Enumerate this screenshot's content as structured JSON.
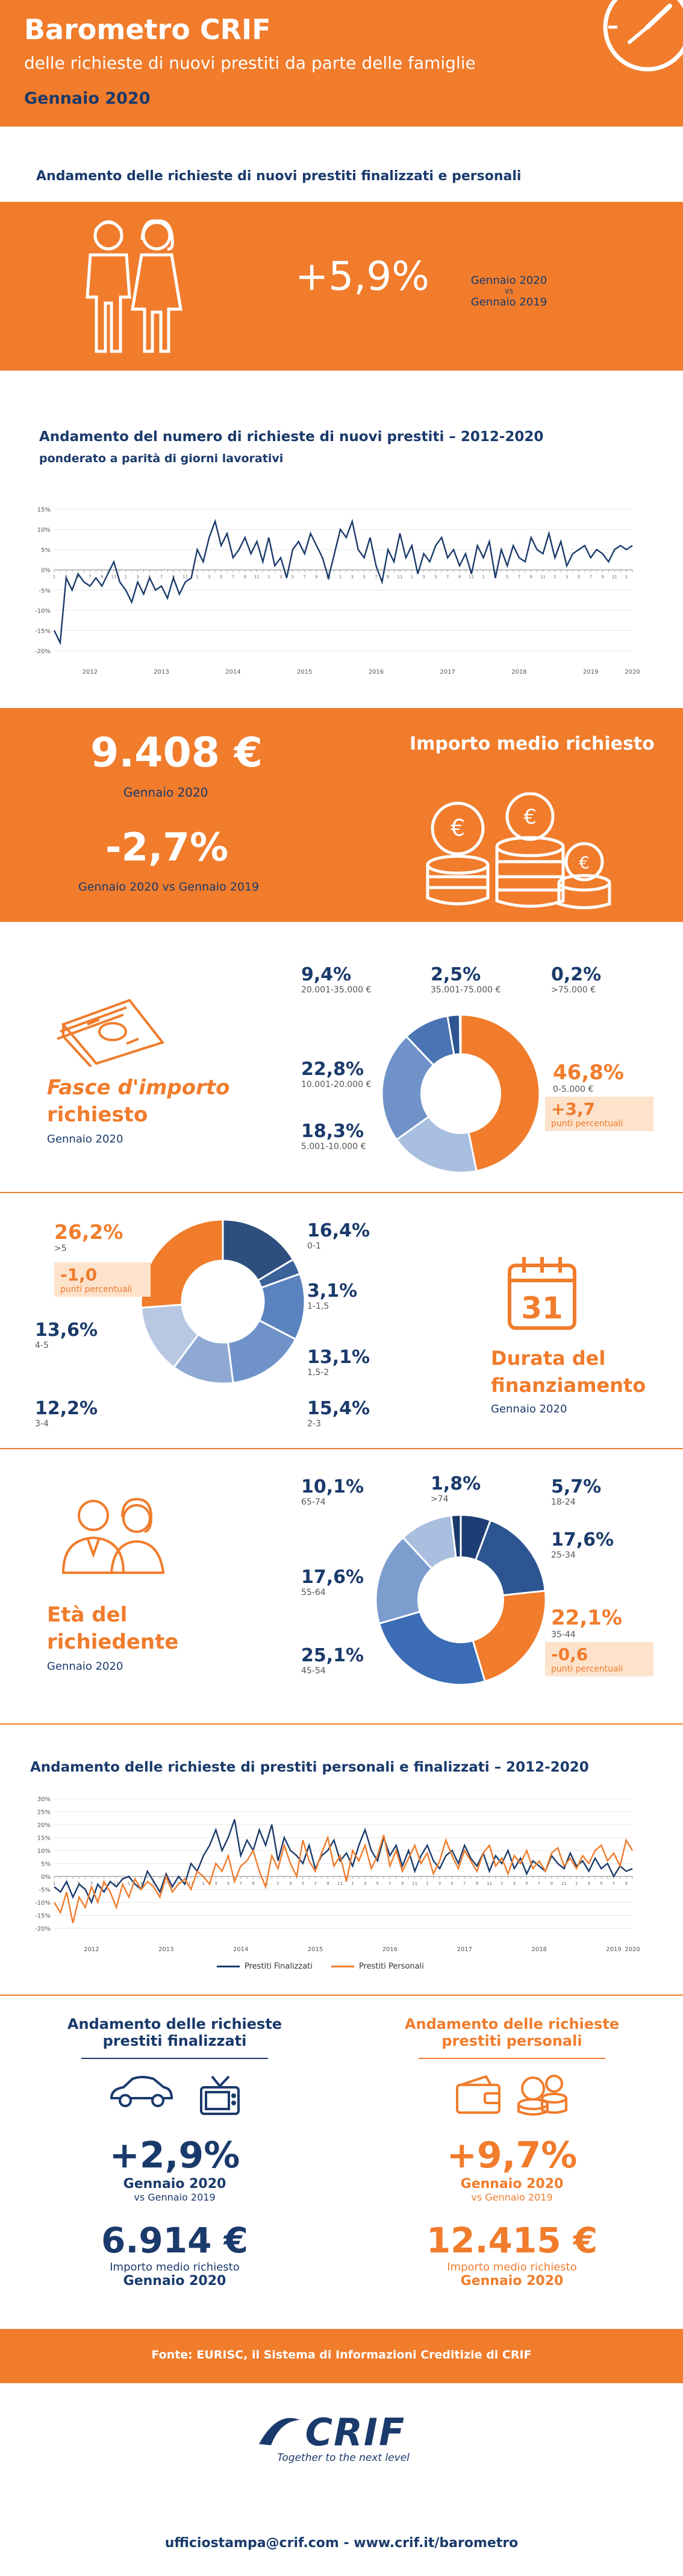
{
  "header": {
    "title": "Barometro CRIF",
    "subtitle": "delle richieste di nuovi prestiti da parte delle famiglie",
    "date": "Gennaio 2020"
  },
  "section1": {
    "title": "Andamento delle richieste di nuovi prestiti finalizzati e personali",
    "value": "+5,9%",
    "compare_line1": "Gennaio 2020",
    "compare_line2": "vs",
    "compare_line3": "Gennaio 2019"
  },
  "chart1": {
    "title": "Andamento del numero di richieste di nuovi prestiti – 2012-2020",
    "subtitle": "ponderato a parità di giorni lavorativi"
  },
  "importo": {
    "value": "9.408 €",
    "value_caption": "Gennaio 2020",
    "label": "Importo medio richiesto",
    "change": "-2,7%",
    "change_caption": "Gennaio 2020 vs Gennaio 2019"
  },
  "fasce": {
    "title_line1": "Fasce d'importo",
    "title_line2": "richiesto",
    "date": "Gennaio 2020",
    "slices": [
      {
        "value": "46,8%",
        "label": "0-5.000 €",
        "color": "#f07c2c",
        "pct": 46.8
      },
      {
        "value": "18,3%",
        "label": "5.001-10.000  €",
        "color": "#a9bfe0",
        "pct": 18.3
      },
      {
        "value": "22,8%",
        "label": "10.001-20.000 €",
        "color": "#6f93c9",
        "pct": 22.8
      },
      {
        "value": "9,4%",
        "label": "20.001-35.000 €",
        "color": "#4a74b3",
        "pct": 9.4
      },
      {
        "value": "2,5%",
        "label": "35.001-75.000 €",
        "color": "#2c5592",
        "pct": 2.5
      },
      {
        "value": "0,2%",
        "label": ">75.000 €",
        "color": "#1a3a6b",
        "pct": 0.2
      }
    ],
    "delta_value": "+3,7",
    "delta_label": "punti percentuali"
  },
  "durata": {
    "title_line1": "Durata del",
    "title_line2": "finanziamento",
    "date": "Gennaio 2020",
    "calendar_number": "31",
    "slices": [
      {
        "value": "16,4%",
        "label": "0-1",
        "color": "#2e4f7e",
        "pct": 16.4
      },
      {
        "value": "3,1%",
        "label": "1-1,5",
        "color": "#3b6299",
        "pct": 3.1
      },
      {
        "value": "13,1%",
        "label": "1,5-2",
        "color": "#5a82bf",
        "pct": 13.1
      },
      {
        "value": "15,4%",
        "label": "2-3",
        "color": "#6f93c9",
        "pct": 15.4
      },
      {
        "value": "12,2%",
        "label": "3-4",
        "color": "#8fa9d4",
        "pct": 12.2
      },
      {
        "value": "13,6%",
        "label": "4-5",
        "color": "#b8c8e2",
        "pct": 13.6
      },
      {
        "value": "26,2%",
        "label": ">5",
        "color": "#f07c2c",
        "pct": 26.2
      }
    ],
    "delta_value": "-1,0",
    "delta_label": "punti percentuali"
  },
  "eta": {
    "title_line1": "Età del",
    "title_line2": "richiedente",
    "date": "Gennaio 2020",
    "slices": [
      {
        "value": "5,7%",
        "label": "18-24",
        "color": "#1f3d75",
        "pct": 5.7
      },
      {
        "value": "17,6%",
        "label": "25-34",
        "color": "#2c5592",
        "pct": 17.6
      },
      {
        "value": "22,1%",
        "label": "35-44",
        "color": "#f07c2c",
        "pct": 22.1
      },
      {
        "value": "25,1%",
        "label": "45-54",
        "color": "#3b6cb5",
        "pct": 25.1
      },
      {
        "value": "17,6%",
        "label": "55-64",
        "color": "#7d9dcf",
        "pct": 17.6
      },
      {
        "value": "10,1%",
        "label": "65-74",
        "color": "#aabfe0",
        "pct": 10.1
      },
      {
        "value": "1,8%",
        "label": ">74",
        "color": "#1a3a6b",
        "pct": 1.8
      }
    ],
    "delta_value": "-0,6",
    "delta_label": "punti percentuali"
  },
  "chart2": {
    "title": "Andamento delle richieste di prestiti personali e finalizzati – 2012-2020",
    "legend_finalizzati": "Prestiti Finalizzati",
    "legend_personali": "Prestiti Personali"
  },
  "finalizzati": {
    "title_line1": "Andamento delle richieste",
    "title_line2": "prestiti finalizzati",
    "value": "+2,9%",
    "caption1": "Gennaio 2020",
    "caption2": "vs Gennaio 2019",
    "importo": "6.914 €",
    "importo_cap1": "Importo medio richiesto",
    "importo_cap2": "Gennaio 2020"
  },
  "personali": {
    "title_line1": "Andamento delle richieste",
    "title_line2": "prestiti personali",
    "value": "+9,7%",
    "caption1": "Gennaio 2020",
    "caption2": "vs Gennaio 2019",
    "importo": "12.415 €",
    "importo_cap1": "Importo medio richiesto",
    "importo_cap2": "Gennaio 2020"
  },
  "footer": {
    "source": "Fonte: EURISC, il Sistema di Informazioni Creditizie di CRIF",
    "logo": "CRIF",
    "tagline": "Together to the next level",
    "contact": "ufficiostampa@crif.com - www.crif.it/barometro"
  },
  "colors": {
    "orange": "#f07c2c",
    "navy": "#1a3a6b",
    "light_orange": "#fde2cc"
  },
  "chart_data": [
    {
      "type": "line",
      "title": "Andamento del numero di richieste di nuovi prestiti – 2012-2020",
      "subtitle": "ponderato a parità di giorni lavorativi",
      "ylim": [
        -20,
        15
      ],
      "yticks": [
        "15%",
        "10%",
        "5%",
        "0%",
        "-5%",
        "-10%",
        "-15%",
        "-20%"
      ],
      "year_labels": [
        "2012",
        "2013",
        "2014",
        "2015",
        "2016",
        "2017",
        "2018",
        "2019",
        "2020"
      ],
      "series": [
        {
          "name": "",
          "values": [
            -15,
            -18,
            -2,
            -5,
            -1,
            -3,
            -4,
            -2,
            -4,
            -1,
            2,
            -3,
            -5,
            -8,
            -3,
            -6,
            -2,
            -5,
            -4,
            -7,
            -2,
            -6,
            -3,
            -2,
            5,
            2,
            8,
            12,
            6,
            9,
            3,
            5,
            8,
            4,
            7,
            2,
            8,
            1,
            3,
            -2,
            5,
            7,
            4,
            9,
            6,
            3,
            -2,
            4,
            10,
            8,
            12,
            5,
            3,
            8,
            1,
            -3,
            5,
            2,
            9,
            3,
            6,
            -1,
            4,
            2,
            6,
            8,
            3,
            5,
            1,
            4,
            -1,
            6,
            3,
            7,
            -2,
            5,
            1,
            6,
            3,
            2,
            8,
            5,
            4,
            9,
            3,
            7,
            1,
            4,
            5,
            6,
            3,
            5,
            4,
            2,
            5,
            6,
            5,
            6
          ]
        }
      ]
    },
    {
      "type": "line",
      "title": "Andamento delle richieste di prestiti personali e finalizzati – 2012-2020",
      "ylim": [
        -20,
        30
      ],
      "yticks": [
        "30%",
        "25%",
        "20%",
        "15%",
        "10%",
        "5%",
        "0%",
        "-5%",
        "-10%",
        "-15%",
        "-20%"
      ],
      "year_labels": [
        "2012",
        "2013",
        "2014",
        "2015",
        "2016",
        "2017",
        "2018",
        "2019",
        "2020"
      ],
      "series": [
        {
          "name": "Prestiti Finalizzati",
          "color": "#1a3a6b",
          "values": [
            -4,
            -6,
            -2,
            -8,
            -3,
            -5,
            -10,
            -3,
            -6,
            -2,
            -4,
            -1,
            0,
            -3,
            -5,
            2,
            -2,
            -6,
            1,
            -4,
            0,
            -3,
            5,
            2,
            8,
            12,
            18,
            10,
            15,
            22,
            8,
            14,
            10,
            18,
            12,
            20,
            6,
            15,
            10,
            8,
            5,
            12,
            3,
            8,
            10,
            14,
            6,
            9,
            4,
            12,
            18,
            10,
            6,
            15,
            8,
            12,
            4,
            10,
            2,
            8,
            12,
            6,
            3,
            8,
            10,
            5,
            12,
            7,
            4,
            9,
            2,
            8,
            5,
            10,
            3,
            7,
            1,
            6,
            4,
            2,
            8,
            5,
            3,
            9,
            4,
            6,
            2,
            7,
            3,
            5,
            0,
            4,
            2,
            3
          ]
        },
        {
          "name": "Prestiti Personali",
          "color": "#f07c2c",
          "values": [
            -10,
            -14,
            -6,
            -18,
            -8,
            -12,
            -4,
            -10,
            -2,
            -6,
            -12,
            -3,
            -8,
            -1,
            -5,
            -2,
            -4,
            -8,
            0,
            -6,
            -3,
            -1,
            -5,
            2,
            0,
            -3,
            5,
            2,
            8,
            -2,
            4,
            6,
            10,
            2,
            -4,
            8,
            3,
            12,
            5,
            0,
            14,
            6,
            2,
            9,
            15,
            4,
            8,
            -2,
            10,
            6,
            12,
            3,
            8,
            16,
            4,
            10,
            2,
            7,
            12,
            5,
            9,
            1,
            6,
            14,
            8,
            3,
            10,
            6,
            2,
            9,
            12,
            4,
            7,
            1,
            8,
            5,
            10,
            3,
            6,
            2,
            9,
            11,
            4,
            7,
            3,
            8,
            5,
            10,
            12,
            6,
            9,
            4,
            14,
            10
          ]
        }
      ]
    },
    {
      "type": "pie",
      "title": "Fasce d'importo richiesto",
      "categories": [
        "0-5.000 €",
        "5.001-10.000  €",
        "10.001-20.000 €",
        "20.001-35.000 €",
        "35.001-75.000 €",
        ">75.000 €"
      ],
      "values": [
        46.8,
        18.3,
        22.8,
        9.4,
        2.5,
        0.2
      ]
    },
    {
      "type": "pie",
      "title": "Durata del finanziamento",
      "categories": [
        "0-1",
        "1-1,5",
        "1,5-2",
        "2-3",
        "3-4",
        "4-5",
        ">5"
      ],
      "values": [
        16.4,
        3.1,
        13.1,
        15.4,
        12.2,
        13.6,
        26.2
      ]
    },
    {
      "type": "pie",
      "title": "Età del richiedente",
      "categories": [
        "18-24",
        "25-34",
        "35-44",
        "45-54",
        "55-64",
        "65-74",
        ">74"
      ],
      "values": [
        5.7,
        17.6,
        22.1,
        25.1,
        17.6,
        10.1,
        1.8
      ]
    }
  ]
}
